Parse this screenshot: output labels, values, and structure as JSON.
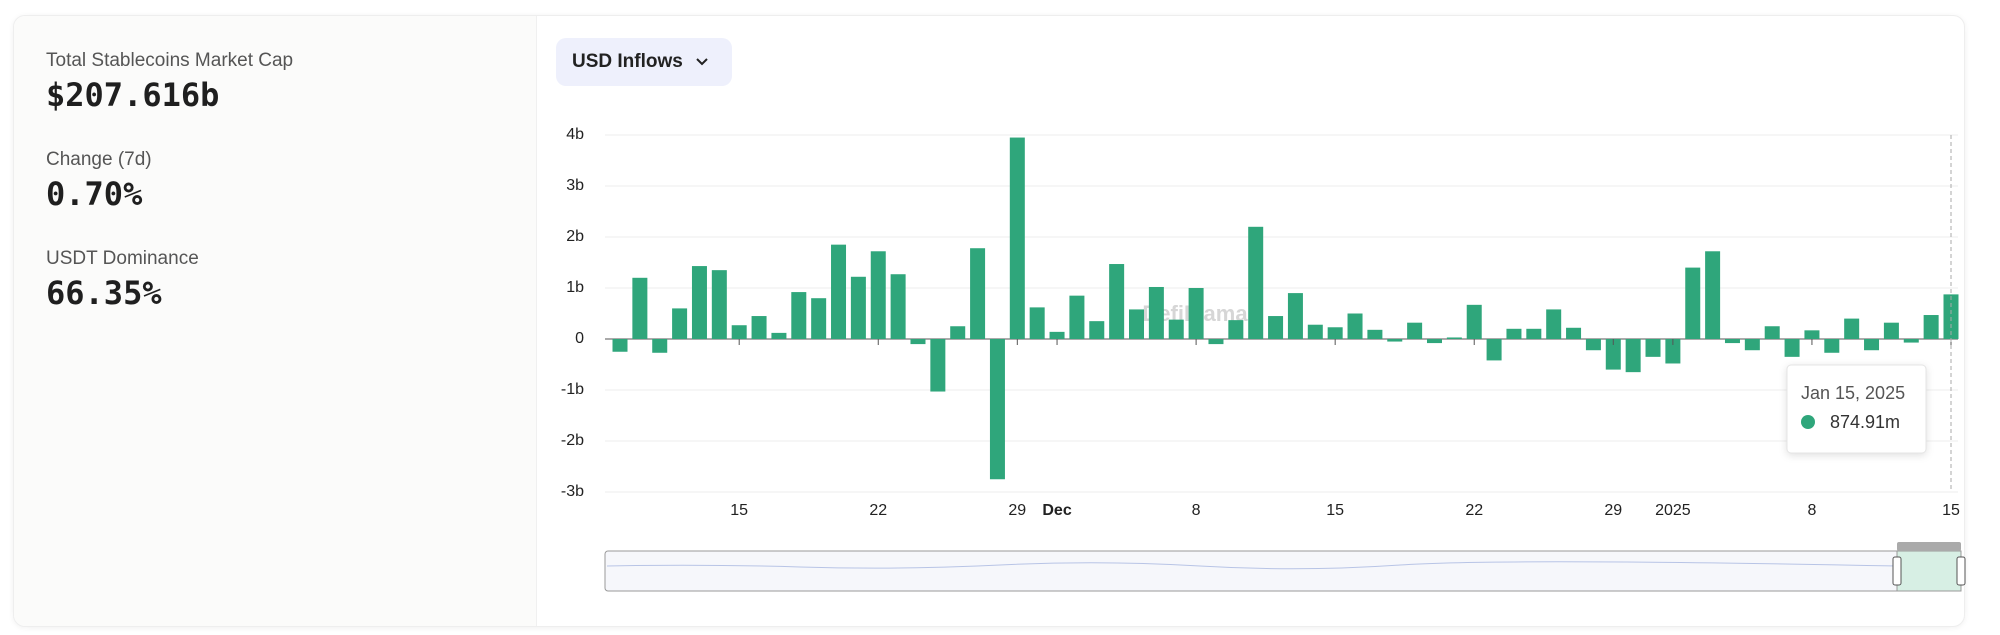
{
  "stats": [
    {
      "label": "Total Stablecoins Market Cap",
      "value": "$207.616b"
    },
    {
      "label": "Change (7d)",
      "value": "0.70%"
    },
    {
      "label": "USDT Dominance",
      "value": "66.35%"
    }
  ],
  "dropdown": "USD Inflows",
  "chart_data": {
    "type": "bar",
    "categories": [
      null,
      null,
      null,
      null,
      null,
      null,
      "15",
      null,
      null,
      null,
      null,
      null,
      null,
      "22",
      null,
      null,
      null,
      null,
      null,
      null,
      "29",
      null,
      "Dec",
      null,
      null,
      null,
      null,
      null,
      null,
      "8",
      null,
      null,
      null,
      null,
      null,
      null,
      "15",
      null,
      null,
      null,
      null,
      null,
      null,
      "22",
      null,
      null,
      null,
      null,
      null,
      null,
      "29",
      null,
      null,
      "2025",
      null,
      null,
      null,
      null,
      null,
      null,
      "8",
      null,
      null,
      null,
      null,
      null,
      null,
      "15"
    ],
    "values": [
      -0.25,
      1.2,
      -0.27,
      0.6,
      1.43,
      1.35,
      0.27,
      0.45,
      0.12,
      0.92,
      0.8,
      1.85,
      1.22,
      1.72,
      1.27,
      -0.1,
      -1.03,
      0.25,
      1.78,
      -2.75,
      3.95,
      0.62,
      0.14,
      0.85,
      0.35,
      1.47,
      0.58,
      1.02,
      0.38,
      1.0,
      -0.1,
      0.37,
      2.2,
      0.45,
      0.9,
      0.28,
      0.23,
      0.5,
      0.18,
      -0.05,
      0.32,
      -0.08,
      0.03,
      0.67,
      -0.42,
      0.2,
      0.2,
      0.58,
      0.22,
      -0.22,
      -0.6,
      -0.65,
      -0.35,
      -0.48,
      1.4,
      1.72,
      -0.08,
      -0.22,
      0.25,
      -0.35,
      0.17,
      -0.27,
      0.4,
      -0.22,
      0.32,
      -0.07,
      0.47,
      0.87491
    ],
    "color": "#2fa67b",
    "ylim": [
      -3,
      4
    ],
    "yticks": [
      {
        "value": -3,
        "label": "-3b"
      },
      {
        "value": -2,
        "label": "-2b"
      },
      {
        "value": -1,
        "label": "-1b"
      },
      0,
      {
        "value": 1,
        "label": "1b"
      },
      {
        "value": 2,
        "label": "2b"
      },
      {
        "value": 3,
        "label": "3b"
      },
      {
        "value": 4,
        "label": "4b"
      }
    ],
    "grid": true,
    "watermark": "DefiLlama",
    "tooltip": {
      "date": "Jan 15, 2025",
      "value": 0.87491,
      "label": "874.91m"
    }
  }
}
